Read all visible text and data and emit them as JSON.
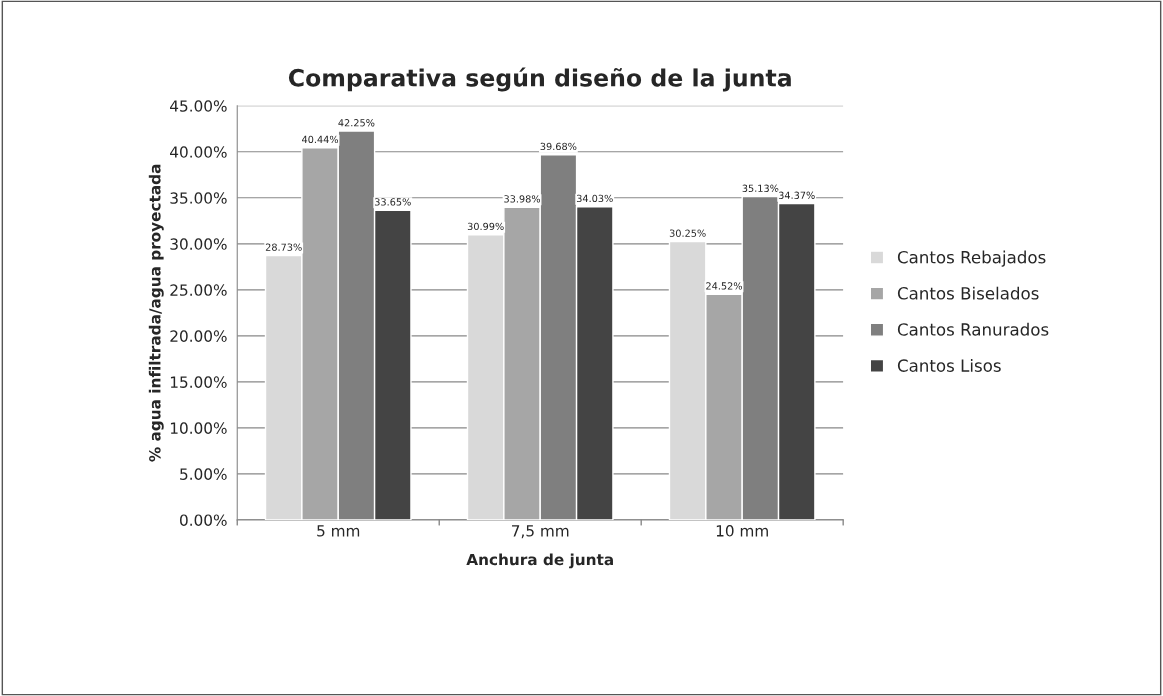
{
  "chart_data": {
    "type": "bar",
    "title": "Comparativa según diseño de la junta",
    "xlabel": "Anchura de junta",
    "ylabel": "% agua infiltrada/agua proyectada",
    "categories": [
      "5 mm",
      "7,5 mm",
      "10 mm"
    ],
    "series": [
      {
        "name": "Cantos Rebajados",
        "color": "#d9d9d9",
        "values": [
          28.73,
          30.99,
          30.25
        ],
        "value_labels": [
          "28.73%",
          "30.99%",
          "30.25%"
        ]
      },
      {
        "name": "Cantos Biselados",
        "color": "#a6a6a6",
        "values": [
          40.44,
          33.98,
          24.52
        ],
        "value_labels": [
          "40.44%",
          "33.98%",
          "24.52%"
        ]
      },
      {
        "name": "Cantos Ranurados",
        "color": "#7f7f7f",
        "values": [
          42.25,
          39.68,
          35.13
        ],
        "value_labels": [
          "42.25%",
          "39.68%",
          "35.13%"
        ]
      },
      {
        "name": "Cantos Lisos",
        "color": "#444444",
        "values": [
          33.65,
          34.03,
          34.37
        ],
        "value_labels": [
          "33.65%",
          "34.03%",
          "34.37%"
        ]
      }
    ],
    "ylim": [
      0,
      45
    ],
    "yticks": [
      {
        "value": 0,
        "label": "0.00%"
      },
      {
        "value": 5,
        "label": "5.00%"
      },
      {
        "value": 10,
        "label": "10.00%"
      },
      {
        "value": 15,
        "label": "15.00%"
      },
      {
        "value": 20,
        "label": "20.00%"
      },
      {
        "value": 25,
        "label": "25.00%"
      },
      {
        "value": 30,
        "label": "30.00%"
      },
      {
        "value": 35,
        "label": "35.00%"
      },
      {
        "value": 40,
        "label": "40.00%"
      },
      {
        "value": 45,
        "label": "45.00%"
      }
    ],
    "grid": "y",
    "legend": "right"
  }
}
